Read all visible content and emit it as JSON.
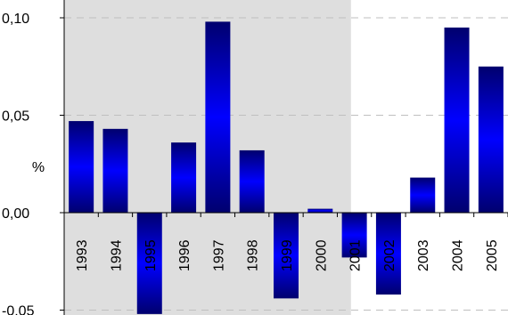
{
  "chart_data": {
    "type": "bar",
    "categories": [
      "1993",
      "1994",
      "1995",
      "1996",
      "1997",
      "1998",
      "1999",
      "2000",
      "2001",
      "2002",
      "2003",
      "2004",
      "2005"
    ],
    "values": [
      0.047,
      0.043,
      -0.052,
      0.036,
      0.098,
      0.032,
      -0.044,
      0.002,
      -0.023,
      -0.042,
      0.018,
      0.095,
      0.075
    ],
    "ylabel": "%",
    "ylim": [
      -0.05,
      0.1
    ],
    "yticks": [
      -0.05,
      0.0,
      0.05,
      0.1
    ],
    "ytick_labels": [
      "-0,05",
      "0,00",
      "0,05",
      "0,10"
    ],
    "grid": "horizontal dashed",
    "shaded_region": {
      "from_category": "1993",
      "to_category": "2001"
    },
    "colors": {
      "bar_dark": "#00006e",
      "bar_bright": "#0000ff",
      "shade": "#dedede",
      "grid": "#bfbfbf"
    }
  }
}
